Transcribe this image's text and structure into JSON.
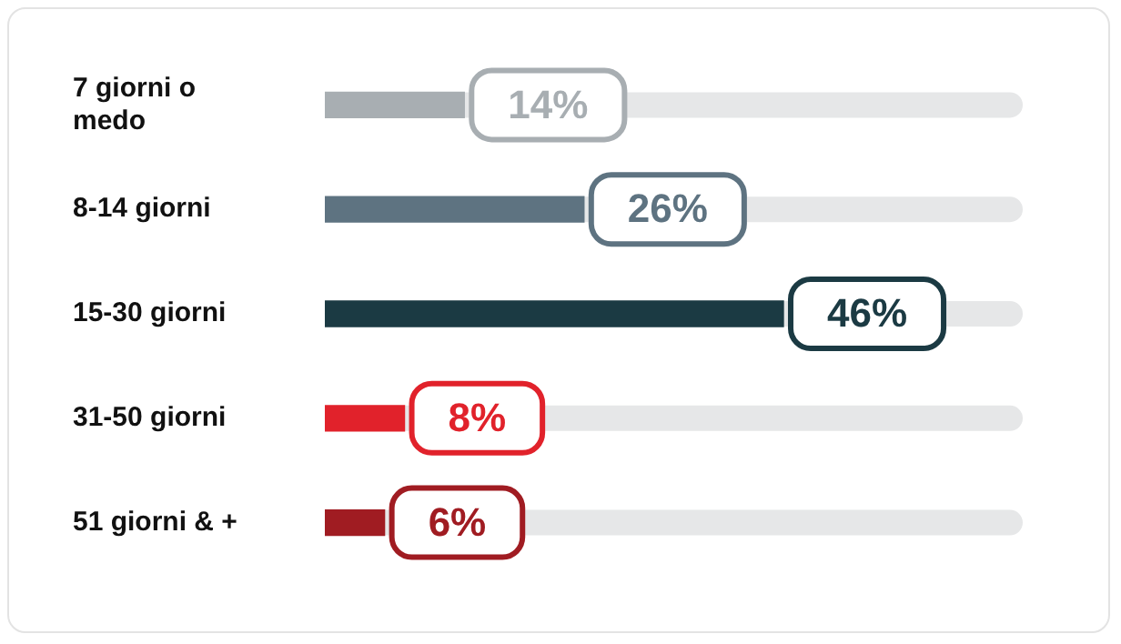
{
  "chart_data": {
    "type": "bar",
    "orientation": "horizontal",
    "categories": [
      "7 giorni o medo",
      "8-14 giorni",
      "15-30 giorni",
      "31-50 giorni",
      "51 giorni & +"
    ],
    "values": [
      14,
      26,
      46,
      8,
      6
    ],
    "value_labels": [
      "14%",
      "26%",
      "46%",
      "8%",
      "6%"
    ],
    "colors": [
      "#a8aeb2",
      "#5e7381",
      "#1b3a43",
      "#e1222b",
      "#a01c22"
    ],
    "tick_labels": "y"
  }
}
